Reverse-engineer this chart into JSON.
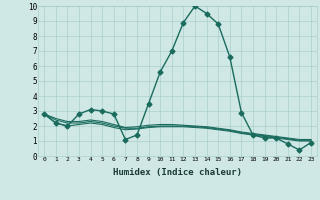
{
  "xlabel": "Humidex (Indice chaleur)",
  "ylabel": "",
  "xlim": [
    -0.5,
    23.5
  ],
  "ylim": [
    0,
    10
  ],
  "xticks": [
    0,
    1,
    2,
    3,
    4,
    5,
    6,
    7,
    8,
    9,
    10,
    11,
    12,
    13,
    14,
    15,
    16,
    17,
    18,
    19,
    20,
    21,
    22,
    23
  ],
  "yticks": [
    0,
    1,
    2,
    3,
    4,
    5,
    6,
    7,
    8,
    9,
    10
  ],
  "bg_color": "#cfe8e5",
  "grid_color": "#aacfcc",
  "line_color": "#1a6b5e",
  "lines": [
    {
      "x": [
        0,
        1,
        2,
        3,
        4,
        5,
        6,
        7,
        8,
        9,
        10,
        11,
        12,
        13,
        14,
        15,
        16,
        17,
        18,
        19,
        20,
        21,
        22,
        23
      ],
      "y": [
        2.8,
        2.2,
        2.0,
        2.8,
        3.1,
        3.0,
        2.8,
        1.1,
        1.4,
        3.5,
        5.6,
        7.0,
        8.9,
        10.0,
        9.5,
        8.8,
        6.6,
        2.9,
        1.4,
        1.2,
        1.2,
        0.8,
        0.4,
        0.9
      ],
      "marker": "D",
      "markersize": 2.5,
      "linewidth": 1.0
    },
    {
      "x": [
        0,
        1,
        2,
        3,
        4,
        5,
        6,
        7,
        8,
        9,
        10,
        11,
        12,
        13,
        14,
        15,
        16,
        17,
        18,
        19,
        20,
        21,
        22,
        23
      ],
      "y": [
        2.8,
        2.5,
        2.3,
        2.3,
        2.4,
        2.3,
        2.1,
        1.9,
        1.95,
        2.05,
        2.1,
        2.1,
        2.05,
        2.0,
        1.95,
        1.85,
        1.75,
        1.6,
        1.5,
        1.4,
        1.3,
        1.2,
        1.1,
        1.1
      ],
      "marker": null,
      "linewidth": 0.8
    },
    {
      "x": [
        0,
        1,
        2,
        3,
        4,
        5,
        6,
        7,
        8,
        9,
        10,
        11,
        12,
        13,
        14,
        15,
        16,
        17,
        18,
        19,
        20,
        21,
        22,
        23
      ],
      "y": [
        2.8,
        2.4,
        2.2,
        2.2,
        2.3,
        2.2,
        2.0,
        1.85,
        1.85,
        1.95,
        2.0,
        2.0,
        2.0,
        1.95,
        1.9,
        1.8,
        1.7,
        1.55,
        1.45,
        1.35,
        1.25,
        1.15,
        1.05,
        1.05
      ],
      "marker": null,
      "linewidth": 0.8
    },
    {
      "x": [
        0,
        1,
        2,
        3,
        4,
        5,
        6,
        7,
        8,
        9,
        10,
        11,
        12,
        13,
        14,
        15,
        16,
        17,
        18,
        19,
        20,
        21,
        22,
        23
      ],
      "y": [
        2.8,
        2.2,
        2.0,
        2.1,
        2.2,
        2.1,
        1.9,
        1.75,
        1.8,
        1.9,
        1.95,
        1.95,
        1.95,
        1.9,
        1.85,
        1.75,
        1.65,
        1.5,
        1.4,
        1.3,
        1.2,
        1.1,
        1.0,
        1.0
      ],
      "marker": null,
      "linewidth": 0.8
    }
  ]
}
